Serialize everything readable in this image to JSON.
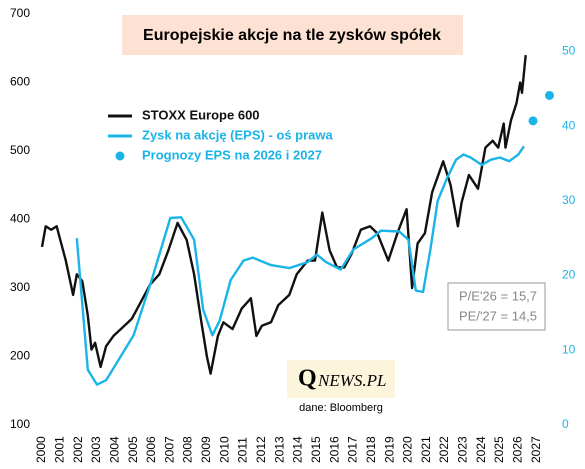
{
  "chart_data": {
    "type": "line",
    "title": "Europejskie akcje na tle zysków spółek",
    "annotations": {
      "pe26": "P/E'26 = 15,7",
      "pe27": "PE/'27 = 14,5",
      "logo_q": "Q",
      "logo_rest": "NEWS.PL",
      "source": "dane: Bloomberg"
    },
    "xlim": [
      2000,
      2028
    ],
    "xticks": [
      2000,
      2001,
      2002,
      2003,
      2004,
      2005,
      2006,
      2007,
      2008,
      2009,
      2010,
      2011,
      2012,
      2013,
      2014,
      2015,
      2016,
      2017,
      2018,
      2019,
      2020,
      2021,
      2022,
      2023,
      2024,
      2025,
      2026,
      2027
    ],
    "ylim": [
      100,
      700
    ],
    "yticks": [
      100,
      200,
      300,
      400,
      500,
      600,
      700
    ],
    "y2lim": [
      0,
      55
    ],
    "y2ticks": [
      0,
      10,
      20,
      30,
      40,
      50
    ],
    "legend": "top-left",
    "series": [
      {
        "name": "STOXX Europe 600",
        "color": "#111111",
        "mark": "line",
        "axis": "y",
        "x": [
          2000.0,
          2000.2,
          2000.5,
          2000.8,
          2001.0,
          2001.3,
          2001.7,
          2001.9,
          2002.2,
          2002.5,
          2002.7,
          2002.9,
          2003.2,
          2003.5,
          2003.9,
          2004.3,
          2004.9,
          2005.5,
          2005.9,
          2006.4,
          2006.9,
          2007.4,
          2007.9,
          2008.3,
          2008.7,
          2009.0,
          2009.2,
          2009.6,
          2009.9,
          2010.4,
          2010.9,
          2011.4,
          2011.7,
          2012.0,
          2012.5,
          2012.9,
          2013.5,
          2013.9,
          2014.5,
          2014.9,
          2015.3,
          2015.7,
          2016.1,
          2016.5,
          2016.9,
          2017.4,
          2017.9,
          2018.3,
          2018.9,
          2019.4,
          2019.9,
          2020.2,
          2020.5,
          2020.9,
          2021.3,
          2021.9,
          2022.3,
          2022.7,
          2022.9,
          2023.3,
          2023.8,
          2024.2,
          2024.6,
          2024.9,
          2025.2,
          2025.3,
          2025.6,
          2025.9,
          2026.1,
          2026.2,
          2026.4
        ],
        "values": [
          360,
          390,
          385,
          390,
          370,
          340,
          290,
          320,
          310,
          260,
          210,
          220,
          185,
          215,
          230,
          240,
          255,
          285,
          305,
          320,
          355,
          395,
          370,
          320,
          250,
          200,
          175,
          230,
          250,
          240,
          270,
          285,
          230,
          245,
          250,
          275,
          290,
          320,
          340,
          340,
          410,
          355,
          330,
          330,
          350,
          385,
          390,
          380,
          340,
          380,
          415,
          300,
          365,
          380,
          440,
          485,
          450,
          390,
          425,
          465,
          445,
          505,
          515,
          505,
          540,
          505,
          545,
          570,
          600,
          585,
          640
        ]
      },
      {
        "name": "Zysk na akcję (EPS) - oś prawa",
        "color": "#1ab4e8",
        "mark": "line",
        "axis": "y2",
        "x": [
          2001.9,
          2002.5,
          2003.0,
          2003.5,
          2004.0,
          2005.0,
          2006.0,
          2007.0,
          2007.6,
          2008.3,
          2008.8,
          2009.3,
          2009.7,
          2010.3,
          2011.0,
          2011.5,
          2012.5,
          2013.5,
          2014.5,
          2015.0,
          2015.5,
          2016.3,
          2017.0,
          2018.0,
          2018.5,
          2019.5,
          2020.0,
          2020.4,
          2020.8,
          2021.2,
          2021.6,
          2022.1,
          2022.6,
          2023.0,
          2023.4,
          2024.0,
          2024.5,
          2025.0,
          2025.5,
          2026.0,
          2026.3
        ],
        "values": [
          25,
          7.4,
          5.4,
          6,
          8,
          12,
          19.5,
          27.7,
          27.8,
          24.8,
          15.4,
          12,
          14,
          19.4,
          22,
          22.4,
          21.4,
          21,
          21.8,
          22.8,
          21.8,
          20.8,
          23.5,
          25,
          26,
          25.9,
          24.8,
          18,
          17.8,
          23.5,
          30,
          33,
          35.5,
          36.2,
          35.8,
          34.8,
          35.5,
          35.8,
          35.3,
          36.2,
          37.3
        ]
      },
      {
        "name": "Prognozy EPS na 2026 i 2027",
        "color": "#1ab4e8",
        "mark": "dot",
        "axis": "y2",
        "x": [
          2026.8,
          2027.7
        ],
        "values": [
          40.7,
          44.1
        ]
      }
    ]
  }
}
